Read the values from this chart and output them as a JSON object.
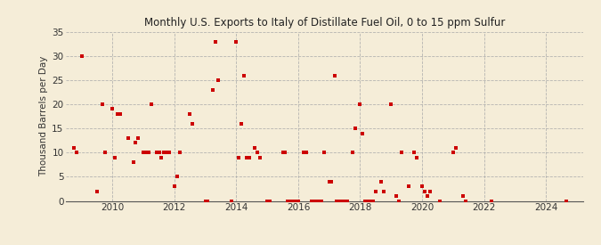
{
  "title": "Monthly U.S. Exports to Italy of Distillate Fuel Oil, 0 to 15 ppm Sulfur",
  "ylabel": "Thousand Barrels per Day",
  "background_color": "#f5edd8",
  "plot_bg_color": "#f5edd8",
  "dot_color": "#cc0000",
  "ylim": [
    0,
    35
  ],
  "yticks": [
    0,
    5,
    10,
    15,
    20,
    25,
    30,
    35
  ],
  "xlim_start": 2008.5,
  "xlim_end": 2025.2,
  "xticks": [
    2010,
    2012,
    2014,
    2016,
    2018,
    2020,
    2022,
    2024
  ],
  "data_points": [
    [
      2008.75,
      11
    ],
    [
      2008.83,
      10
    ],
    [
      2009.0,
      30
    ],
    [
      2009.5,
      2
    ],
    [
      2009.67,
      20
    ],
    [
      2009.75,
      10
    ],
    [
      2010.0,
      19
    ],
    [
      2010.08,
      9
    ],
    [
      2010.17,
      18
    ],
    [
      2010.25,
      18
    ],
    [
      2010.5,
      13
    ],
    [
      2010.67,
      8
    ],
    [
      2010.75,
      12
    ],
    [
      2010.83,
      13
    ],
    [
      2011.0,
      10
    ],
    [
      2011.08,
      10
    ],
    [
      2011.17,
      10
    ],
    [
      2011.25,
      20
    ],
    [
      2011.42,
      10
    ],
    [
      2011.5,
      10
    ],
    [
      2011.58,
      9
    ],
    [
      2011.67,
      10
    ],
    [
      2011.75,
      10
    ],
    [
      2011.83,
      10
    ],
    [
      2012.0,
      3
    ],
    [
      2012.08,
      5
    ],
    [
      2012.17,
      10
    ],
    [
      2012.5,
      18
    ],
    [
      2012.58,
      16
    ],
    [
      2013.0,
      0
    ],
    [
      2013.08,
      0
    ],
    [
      2013.25,
      23
    ],
    [
      2013.33,
      33
    ],
    [
      2013.42,
      25
    ],
    [
      2013.83,
      0
    ],
    [
      2014.0,
      33
    ],
    [
      2014.08,
      9
    ],
    [
      2014.17,
      16
    ],
    [
      2014.25,
      26
    ],
    [
      2014.33,
      9
    ],
    [
      2014.42,
      9
    ],
    [
      2014.58,
      11
    ],
    [
      2014.67,
      10
    ],
    [
      2014.75,
      9
    ],
    [
      2015.0,
      0
    ],
    [
      2015.08,
      0
    ],
    [
      2015.5,
      10
    ],
    [
      2015.58,
      10
    ],
    [
      2015.67,
      0
    ],
    [
      2015.75,
      0
    ],
    [
      2015.83,
      0
    ],
    [
      2015.92,
      0
    ],
    [
      2016.0,
      0
    ],
    [
      2016.17,
      10
    ],
    [
      2016.25,
      10
    ],
    [
      2016.42,
      0
    ],
    [
      2016.5,
      0
    ],
    [
      2016.58,
      0
    ],
    [
      2016.67,
      0
    ],
    [
      2016.75,
      0
    ],
    [
      2016.83,
      10
    ],
    [
      2017.0,
      4
    ],
    [
      2017.08,
      4
    ],
    [
      2017.17,
      26
    ],
    [
      2017.25,
      0
    ],
    [
      2017.33,
      0
    ],
    [
      2017.42,
      0
    ],
    [
      2017.5,
      0
    ],
    [
      2017.58,
      0
    ],
    [
      2017.75,
      10
    ],
    [
      2017.83,
      15
    ],
    [
      2018.0,
      20
    ],
    [
      2018.08,
      14
    ],
    [
      2018.17,
      0
    ],
    [
      2018.25,
      0
    ],
    [
      2018.33,
      0
    ],
    [
      2018.42,
      0
    ],
    [
      2018.5,
      2
    ],
    [
      2018.67,
      4
    ],
    [
      2018.75,
      2
    ],
    [
      2019.0,
      20
    ],
    [
      2019.17,
      1
    ],
    [
      2019.25,
      0
    ],
    [
      2019.33,
      10
    ],
    [
      2019.58,
      3
    ],
    [
      2019.75,
      10
    ],
    [
      2019.83,
      9
    ],
    [
      2020.0,
      3
    ],
    [
      2020.08,
      2
    ],
    [
      2020.17,
      1
    ],
    [
      2020.25,
      2
    ],
    [
      2020.58,
      0
    ],
    [
      2021.0,
      10
    ],
    [
      2021.08,
      11
    ],
    [
      2021.33,
      1
    ],
    [
      2021.42,
      0
    ],
    [
      2022.25,
      0
    ],
    [
      2024.67,
      0
    ]
  ]
}
